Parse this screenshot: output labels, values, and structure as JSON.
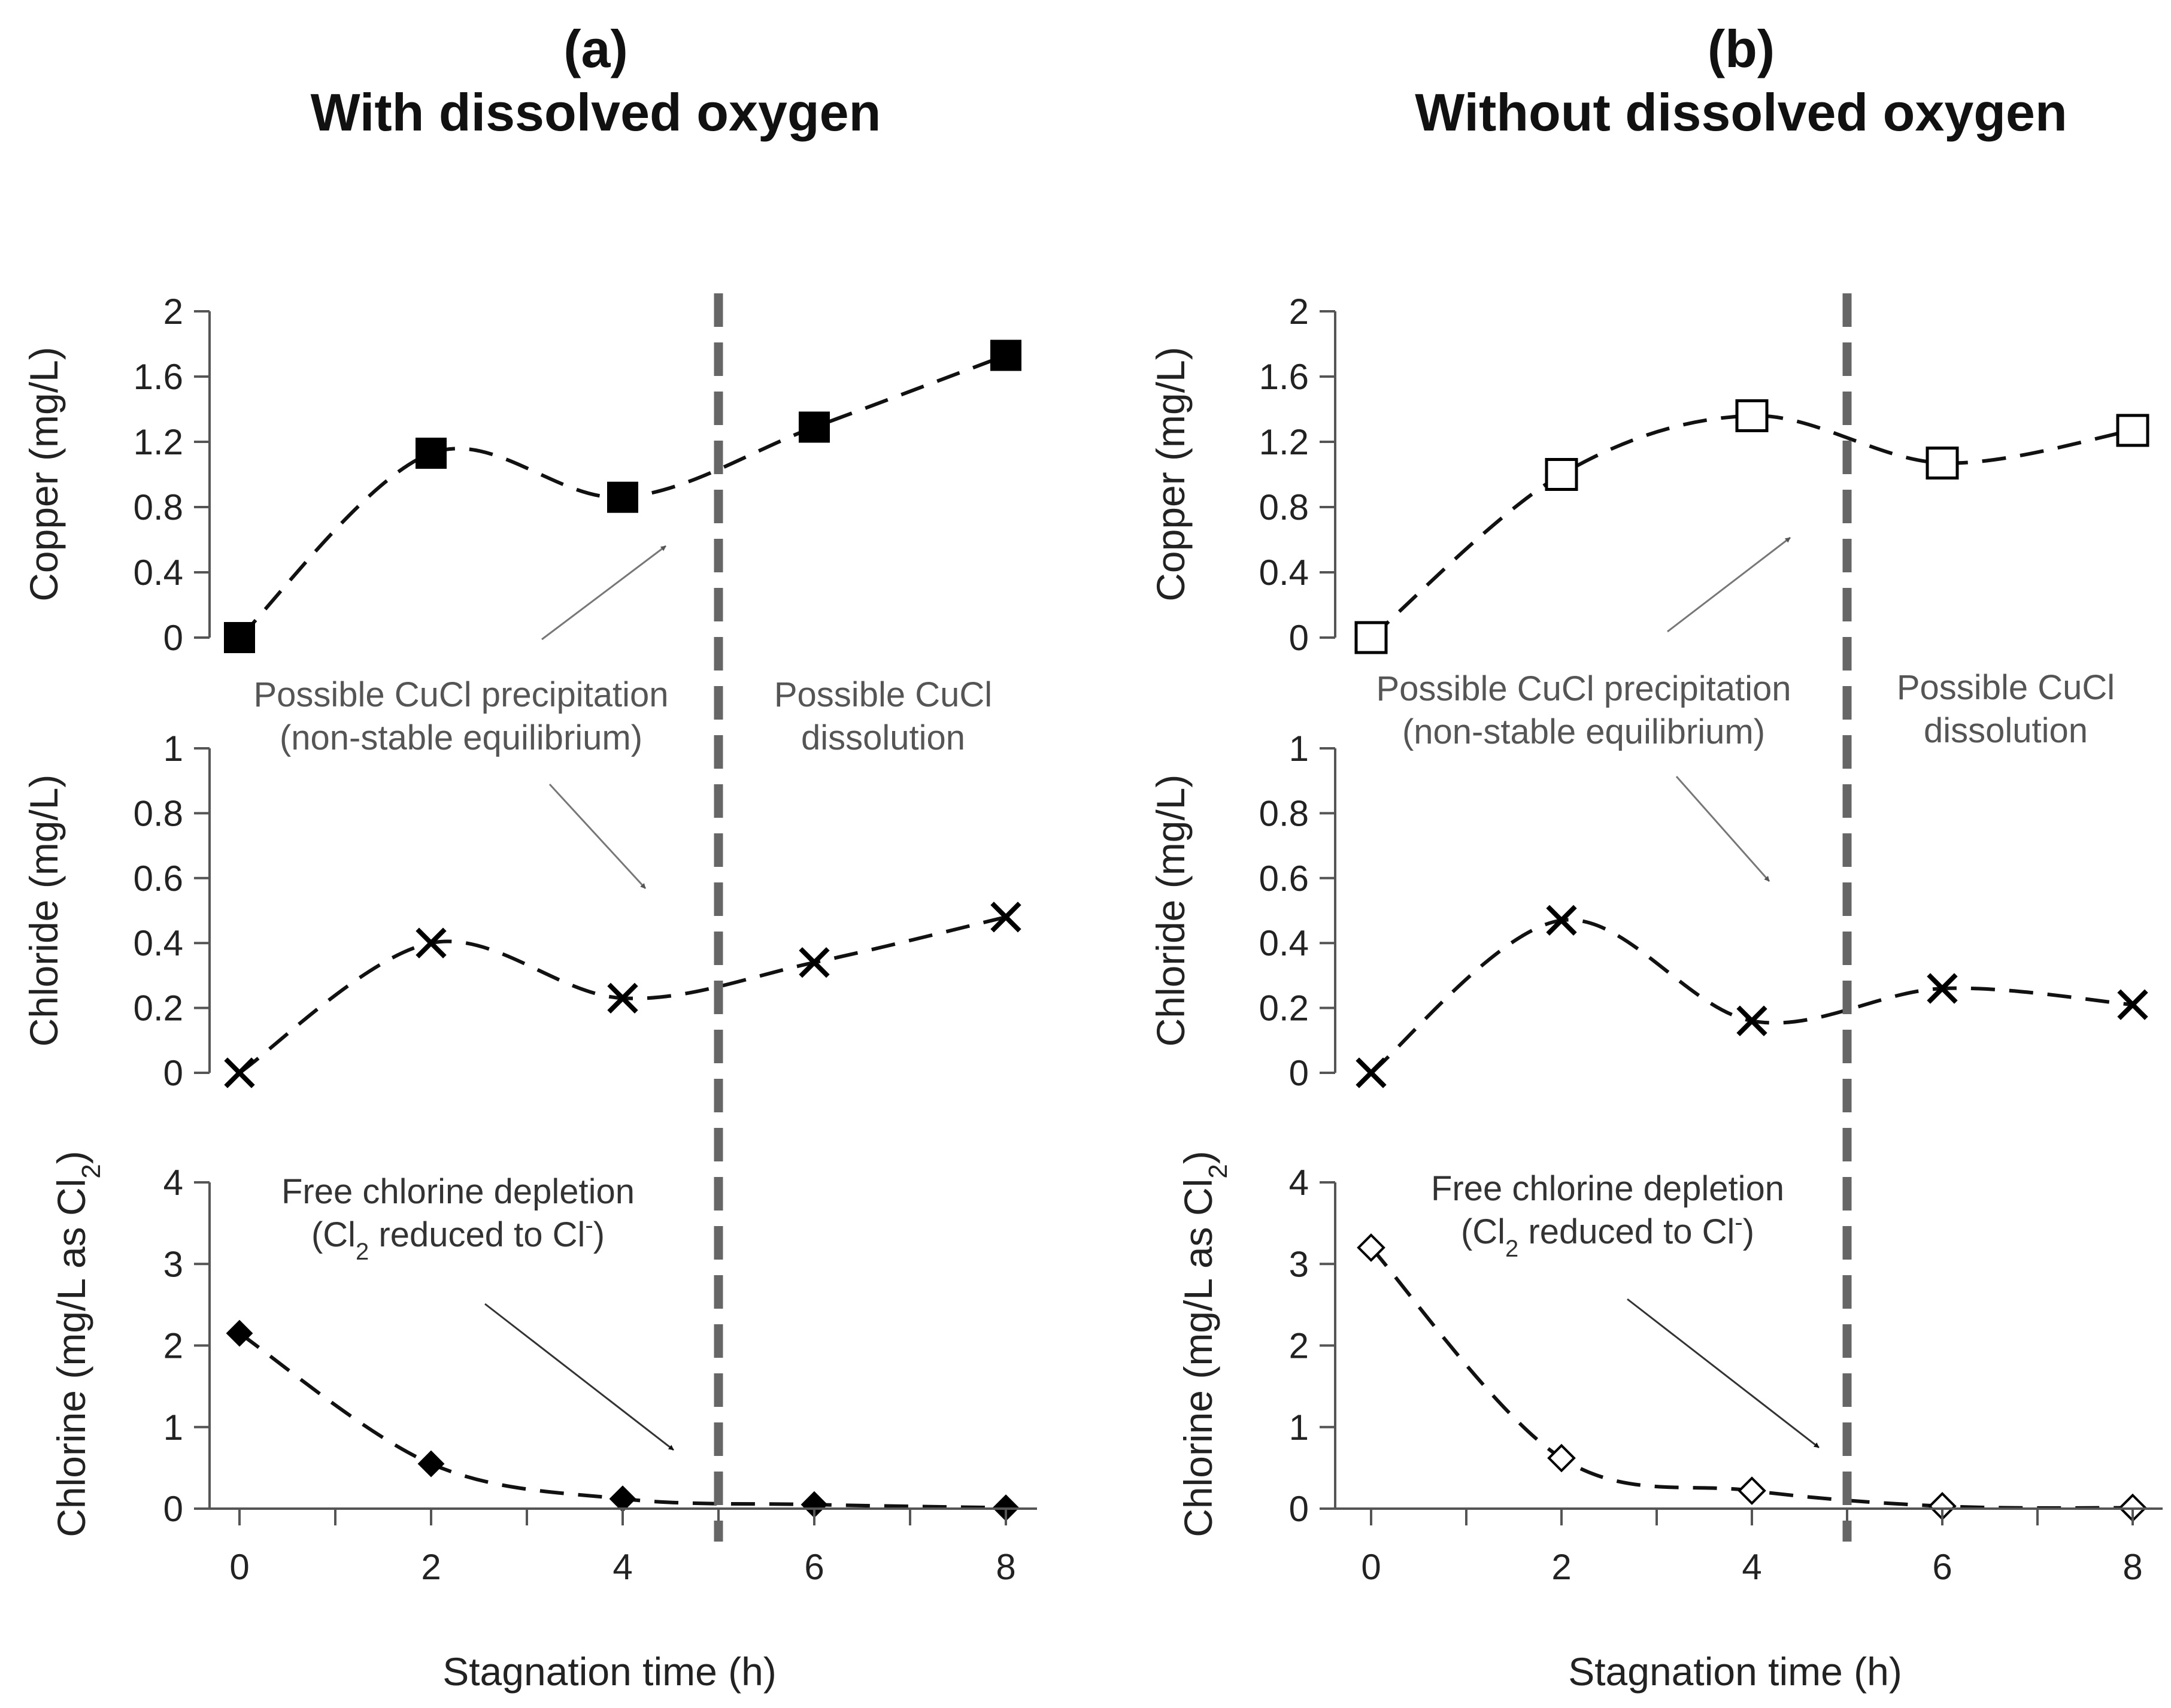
{
  "chart_data": {
    "type": "line",
    "x_ticks": [
      0,
      2,
      4,
      6,
      8
    ],
    "xlabel": "Stagnation time (h)",
    "xlim": [
      0,
      8
    ],
    "divider_x": 5,
    "panels": [
      {
        "label": "(a)",
        "title": "With dissolved oxygen",
        "annotations": {
          "precip_line1": "Possible CuCl precipitation",
          "precip_line2": "(non-stable equilibrium)",
          "dissol_line1": "Possible CuCl",
          "dissol_line2": "dissolution",
          "depletion_line1": "Free chlorine depletion",
          "depletion_line2_pre": "(Cl",
          "depletion_line2_sub": "2",
          "depletion_line2_mid": " reduced to Cl",
          "depletion_line2_sup": "-",
          "depletion_line2_post": ")"
        },
        "subplots": [
          {
            "key": "copper",
            "ylabel": "Copper (mg/L)",
            "ylim": [
              0,
              2
            ],
            "y_ticks": [
              0,
              0.4,
              0.8,
              1.2,
              1.6,
              2
            ],
            "y_tick_labels": [
              "0",
              "0.4",
              "0.8",
              "1.2",
              "1.6",
              "2"
            ],
            "marker": "square",
            "filled": true,
            "x": [
              0,
              2,
              4,
              6,
              8
            ],
            "values": [
              0.0,
              1.13,
              0.86,
              1.29,
              1.73
            ]
          },
          {
            "key": "chloride",
            "ylabel": "Chloride (mg/L)",
            "ylim": [
              0,
              1
            ],
            "y_ticks": [
              0,
              0.2,
              0.4,
              0.6,
              0.8,
              1
            ],
            "y_tick_labels": [
              "0",
              "0.2",
              "0.4",
              "0.6",
              "0.8",
              "1"
            ],
            "marker": "x",
            "filled": true,
            "x": [
              0,
              2,
              4,
              6,
              8
            ],
            "values": [
              0.0,
              0.4,
              0.23,
              0.34,
              0.48
            ]
          },
          {
            "key": "chlorine",
            "ylabel_pre": "Chlorine (mg/L as Cl",
            "ylabel_sub": "2",
            "ylabel_post": ")",
            "ylim": [
              0,
              4
            ],
            "y_ticks": [
              0,
              1,
              2,
              3,
              4
            ],
            "y_tick_labels": [
              "0",
              "1",
              "2",
              "3",
              "4"
            ],
            "marker": "diamond",
            "filled": true,
            "x": [
              0,
              2,
              4,
              6,
              8
            ],
            "values": [
              2.15,
              0.55,
              0.12,
              0.05,
              0.01
            ]
          }
        ]
      },
      {
        "label": "(b)",
        "title": "Without dissolved oxygen",
        "annotations": {
          "precip_line1": "Possible CuCl precipitation",
          "precip_line2": "(non-stable equilibrium)",
          "dissol_line1": "Possible CuCl",
          "dissol_line2": "dissolution",
          "depletion_line1": "Free chlorine depletion",
          "depletion_line2_pre": "(Cl",
          "depletion_line2_sub": "2",
          "depletion_line2_mid": " reduced to Cl",
          "depletion_line2_sup": "-",
          "depletion_line2_post": ")"
        },
        "subplots": [
          {
            "key": "copper",
            "ylabel": "Copper (mg/L)",
            "ylim": [
              0,
              2
            ],
            "y_ticks": [
              0,
              0.4,
              0.8,
              1.2,
              1.6,
              2
            ],
            "y_tick_labels": [
              "0",
              "0.4",
              "0.8",
              "1.2",
              "1.6",
              "2"
            ],
            "marker": "square",
            "filled": false,
            "x": [
              0,
              2,
              4,
              6,
              8
            ],
            "values": [
              0.0,
              1.0,
              1.36,
              1.07,
              1.27
            ]
          },
          {
            "key": "chloride",
            "ylabel": "Chloride (mg/L)",
            "ylim": [
              0,
              1
            ],
            "y_ticks": [
              0,
              0.2,
              0.4,
              0.6,
              0.8,
              1
            ],
            "y_tick_labels": [
              "0",
              "0.2",
              "0.4",
              "0.6",
              "0.8",
              "1"
            ],
            "marker": "x",
            "filled": true,
            "x": [
              0,
              2,
              4,
              6,
              8
            ],
            "values": [
              0.0,
              0.47,
              0.16,
              0.26,
              0.21
            ]
          },
          {
            "key": "chlorine",
            "ylabel_pre": "Chlorine (mg/L as Cl",
            "ylabel_sub": "2",
            "ylabel_post": ")",
            "ylim": [
              0,
              4
            ],
            "y_ticks": [
              0,
              1,
              2,
              3,
              4
            ],
            "y_tick_labels": [
              "0",
              "1",
              "2",
              "3",
              "4"
            ],
            "marker": "diamond",
            "filled": false,
            "x": [
              0,
              2,
              4,
              6,
              8
            ],
            "values": [
              3.2,
              0.62,
              0.22,
              0.03,
              0.01
            ]
          }
        ]
      }
    ]
  }
}
